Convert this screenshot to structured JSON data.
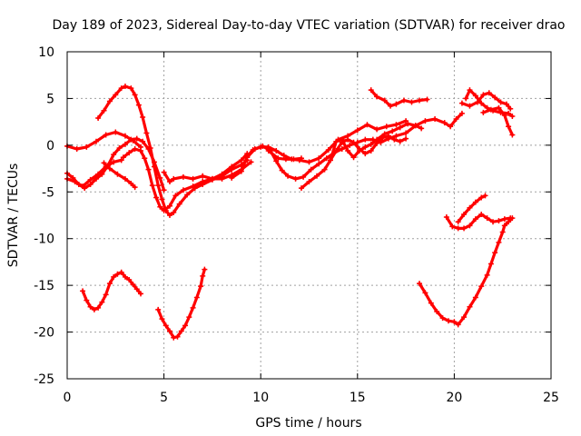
{
  "chart_data": {
    "type": "scatter",
    "title": "Day 189 of 2023, Sidereal Day-to-day VTEC variation (SDTVAR) for receiver drao",
    "xlabel": "GPS time / hours",
    "ylabel": "SDTVAR / TECUs",
    "xlim": [
      0,
      25
    ],
    "ylim": [
      -25,
      10
    ],
    "xticks": [
      0,
      5,
      10,
      15,
      20,
      25
    ],
    "yticks": [
      10,
      5,
      0,
      -5,
      -10,
      -15,
      -20,
      -25
    ],
    "xtick_labels": [
      "0",
      "5",
      "10",
      "15",
      "20",
      "25"
    ],
    "ytick_labels": [
      "10",
      "5",
      "0",
      "-5",
      "-10",
      "-15",
      "-20",
      "-25"
    ],
    "grid": true,
    "color": "#ff0000",
    "series": [
      {
        "points": [
          [
            0,
            -0.1
          ],
          [
            0.5,
            -0.4
          ],
          [
            1,
            -0.2
          ],
          [
            1.5,
            0.4
          ],
          [
            2,
            1.1
          ],
          [
            2.5,
            1.4
          ],
          [
            3,
            1.0
          ],
          [
            3.4,
            0.5
          ],
          [
            3.8,
            -0.2
          ]
        ]
      },
      {
        "points": [
          [
            0,
            -3
          ],
          [
            0.3,
            -3.5
          ],
          [
            0.6,
            -4.2
          ],
          [
            0.9,
            -4.6
          ],
          [
            1.2,
            -4.2
          ],
          [
            1.5,
            -3.6
          ],
          [
            1.8,
            -3.1
          ],
          [
            2.1,
            -2.2
          ],
          [
            2.4,
            -1.0
          ],
          [
            2.7,
            -0.3
          ],
          [
            3.0,
            0.1
          ],
          [
            3.3,
            0.6
          ],
          [
            3.6,
            0.7
          ],
          [
            3.9,
            0.4
          ],
          [
            4.2,
            -0.4
          ],
          [
            4.5,
            -1.8
          ],
          [
            4.8,
            -3.5
          ],
          [
            5.0,
            -4.8
          ]
        ]
      },
      {
        "points": [
          [
            0,
            -3.6
          ],
          [
            0.4,
            -3.9
          ],
          [
            0.8,
            -4.4
          ],
          [
            1.2,
            -3.7
          ],
          [
            1.6,
            -3.1
          ],
          [
            2.0,
            -2.3
          ],
          [
            2.4,
            -1.8
          ],
          [
            2.8,
            -1.6
          ]
        ]
      },
      {
        "points": [
          [
            1.6,
            2.9
          ],
          [
            1.9,
            3.7
          ],
          [
            2.2,
            4.7
          ],
          [
            2.5,
            5.4
          ],
          [
            2.8,
            6.1
          ],
          [
            3.0,
            6.3
          ],
          [
            3.3,
            6.1
          ],
          [
            3.5,
            5.4
          ],
          [
            3.7,
            4.3
          ],
          [
            3.9,
            3.0
          ],
          [
            4.1,
            1.3
          ],
          [
            4.3,
            -0.3
          ],
          [
            4.5,
            -2.3
          ],
          [
            4.7,
            -4.3
          ],
          [
            4.9,
            -5.8
          ],
          [
            5.1,
            -7.0
          ],
          [
            5.3,
            -7.5
          ],
          [
            5.5,
            -7.2
          ],
          [
            5.8,
            -6.3
          ],
          [
            6.2,
            -5.3
          ],
          [
            6.6,
            -4.6
          ],
          [
            7.0,
            -4.2
          ],
          [
            7.5,
            -3.7
          ],
          [
            8.0,
            -3.3
          ],
          [
            8.5,
            -2.6
          ],
          [
            9.0,
            -2.1
          ],
          [
            9.3,
            -1.6
          ]
        ]
      },
      {
        "points": [
          [
            1.9,
            -1.9
          ],
          [
            2.2,
            -2.5
          ],
          [
            2.6,
            -3.1
          ],
          [
            3.0,
            -3.6
          ],
          [
            3.3,
            -4.1
          ],
          [
            3.5,
            -4.5
          ]
        ]
      },
      {
        "points": [
          [
            2.9,
            -1.3
          ],
          [
            3.2,
            -0.8
          ],
          [
            3.5,
            -0.4
          ],
          [
            3.8,
            -0.6
          ],
          [
            4.0,
            -1.4
          ],
          [
            4.2,
            -2.6
          ],
          [
            4.4,
            -4.3
          ],
          [
            4.6,
            -5.6
          ],
          [
            4.8,
            -6.6
          ],
          [
            5.0,
            -7.0
          ],
          [
            5.3,
            -6.5
          ],
          [
            5.6,
            -5.4
          ],
          [
            6.0,
            -4.8
          ],
          [
            6.5,
            -4.4
          ],
          [
            7.0,
            -3.9
          ],
          [
            7.5,
            -3.6
          ],
          [
            8.0,
            -3.6
          ],
          [
            8.5,
            -3.2
          ],
          [
            9.0,
            -2.6
          ],
          [
            9.5,
            -1.8
          ]
        ]
      },
      {
        "points": [
          [
            5.0,
            -2.9
          ],
          [
            5.3,
            -3.9
          ],
          [
            5.5,
            -3.6
          ],
          [
            6.0,
            -3.4
          ],
          [
            6.5,
            -3.6
          ],
          [
            7.0,
            -3.3
          ],
          [
            7.5,
            -3.6
          ],
          [
            8.0,
            -3.1
          ],
          [
            8.5,
            -2.3
          ],
          [
            9.0,
            -1.6
          ],
          [
            9.3,
            -0.9
          ]
        ]
      },
      {
        "points": [
          [
            8.5,
            -3.5
          ],
          [
            9.0,
            -2.8
          ],
          [
            9.3,
            -1.2
          ],
          [
            9.6,
            -0.5
          ],
          [
            10.0,
            -0.2
          ],
          [
            10.4,
            -0.2
          ],
          [
            10.8,
            -0.6
          ],
          [
            11.2,
            -1.1
          ],
          [
            11.6,
            -1.5
          ],
          [
            12.0,
            -1.6
          ],
          [
            12.5,
            -1.8
          ],
          [
            13.0,
            -1.4
          ],
          [
            13.5,
            -0.5
          ],
          [
            14.0,
            0.6
          ],
          [
            14.5,
            1.0
          ],
          [
            15.0,
            1.6
          ],
          [
            15.5,
            2.2
          ],
          [
            16.0,
            1.7
          ],
          [
            16.5,
            2.0
          ],
          [
            17.0,
            2.2
          ],
          [
            17.5,
            2.6
          ]
        ]
      },
      {
        "points": [
          [
            9.3,
            -1.3
          ],
          [
            9.7,
            -0.4
          ],
          [
            10.1,
            -0.1
          ],
          [
            10.5,
            -0.6
          ],
          [
            10.8,
            -1.7
          ],
          [
            11.1,
            -2.7
          ],
          [
            11.4,
            -3.3
          ],
          [
            11.8,
            -3.6
          ],
          [
            12.2,
            -3.4
          ],
          [
            12.6,
            -2.6
          ],
          [
            13.0,
            -2.0
          ],
          [
            13.4,
            -1.4
          ],
          [
            13.8,
            -0.8
          ],
          [
            14.2,
            -0.4
          ],
          [
            14.6,
            0.0
          ],
          [
            15.0,
            0.3
          ],
          [
            15.4,
            0.6
          ],
          [
            15.8,
            0.6
          ],
          [
            16.2,
            0.3
          ],
          [
            16.6,
            0.7
          ],
          [
            17.0,
            1.0
          ],
          [
            17.5,
            1.3
          ],
          [
            18.0,
            2.1
          ],
          [
            18.5,
            2.6
          ],
          [
            19.0,
            2.8
          ],
          [
            19.5,
            2.4
          ],
          [
            19.8,
            2.0
          ],
          [
            20.1,
            2.8
          ],
          [
            20.4,
            3.4
          ]
        ]
      },
      {
        "points": [
          [
            10.4,
            -0.6
          ],
          [
            10.9,
            -1.4
          ],
          [
            11.3,
            -1.5
          ],
          [
            11.7,
            -1.5
          ],
          [
            12.1,
            -1.4
          ]
        ]
      },
      {
        "points": [
          [
            12.1,
            -4.6
          ],
          [
            12.5,
            -3.9
          ],
          [
            12.9,
            -3.3
          ],
          [
            13.3,
            -2.6
          ],
          [
            13.6,
            -1.6
          ],
          [
            13.9,
            -0.6
          ],
          [
            14.2,
            0.3
          ],
          [
            14.5,
            0.6
          ],
          [
            14.8,
            0.3
          ],
          [
            15.1,
            -0.4
          ],
          [
            15.4,
            -0.9
          ],
          [
            15.7,
            -0.6
          ],
          [
            16.0,
            0.2
          ],
          [
            16.3,
            0.8
          ],
          [
            16.6,
            1.0
          ],
          [
            16.9,
            0.6
          ],
          [
            17.2,
            0.4
          ],
          [
            17.5,
            0.7
          ]
        ]
      },
      {
        "points": [
          [
            13.6,
            -1.6
          ],
          [
            13.9,
            0.4
          ],
          [
            14.2,
            0.6
          ],
          [
            14.5,
            -0.6
          ],
          [
            14.8,
            -1.3
          ],
          [
            15.1,
            -0.6
          ],
          [
            15.4,
            -0.2
          ],
          [
            15.7,
            0.1
          ],
          [
            16.0,
            0.6
          ],
          [
            16.4,
            1.2
          ],
          [
            16.8,
            1.5
          ],
          [
            17.2,
            1.9
          ],
          [
            17.6,
            2.3
          ],
          [
            18.0,
            2.1
          ],
          [
            18.3,
            1.8
          ]
        ]
      },
      {
        "points": [
          [
            15.7,
            5.9
          ],
          [
            16.0,
            5.2
          ],
          [
            16.4,
            4.8
          ],
          [
            16.7,
            4.2
          ],
          [
            17.0,
            4.4
          ],
          [
            17.4,
            4.8
          ],
          [
            17.8,
            4.6
          ],
          [
            18.2,
            4.8
          ],
          [
            18.6,
            4.9
          ]
        ]
      },
      {
        "points": [
          [
            20.6,
            5.0
          ],
          [
            20.8,
            5.9
          ],
          [
            21.1,
            5.3
          ],
          [
            21.4,
            4.5
          ],
          [
            21.7,
            4.0
          ],
          [
            22.0,
            3.7
          ],
          [
            22.4,
            3.5
          ],
          [
            22.8,
            3.4
          ],
          [
            23.0,
            3.1
          ]
        ]
      },
      {
        "points": [
          [
            20.4,
            4.5
          ],
          [
            20.8,
            4.2
          ],
          [
            21.2,
            4.6
          ],
          [
            21.5,
            5.4
          ],
          [
            21.8,
            5.6
          ],
          [
            22.1,
            5.1
          ],
          [
            22.4,
            4.6
          ],
          [
            22.7,
            4.4
          ],
          [
            22.9,
            3.9
          ]
        ]
      },
      {
        "points": [
          [
            21.5,
            3.5
          ],
          [
            21.9,
            3.8
          ],
          [
            22.3,
            4.0
          ],
          [
            22.6,
            3.2
          ],
          [
            22.8,
            2.0
          ],
          [
            23.0,
            1.1
          ]
        ]
      },
      {
        "points": [
          [
            0.8,
            -15.6
          ],
          [
            1.0,
            -16.6
          ],
          [
            1.2,
            -17.3
          ],
          [
            1.4,
            -17.6
          ],
          [
            1.6,
            -17.4
          ],
          [
            1.8,
            -16.8
          ],
          [
            2.0,
            -16.0
          ],
          [
            2.2,
            -14.8
          ],
          [
            2.4,
            -14.1
          ],
          [
            2.6,
            -13.8
          ],
          [
            2.8,
            -13.6
          ],
          [
            3.0,
            -14.1
          ],
          [
            3.2,
            -14.4
          ],
          [
            3.4,
            -14.9
          ],
          [
            3.6,
            -15.4
          ],
          [
            3.8,
            -15.9
          ]
        ]
      },
      {
        "points": [
          [
            4.7,
            -17.6
          ],
          [
            4.9,
            -18.6
          ],
          [
            5.1,
            -19.3
          ],
          [
            5.3,
            -19.9
          ],
          [
            5.5,
            -20.6
          ],
          [
            5.7,
            -20.5
          ],
          [
            5.9,
            -19.9
          ],
          [
            6.1,
            -19.3
          ],
          [
            6.3,
            -18.4
          ],
          [
            6.5,
            -17.4
          ],
          [
            6.7,
            -16.3
          ],
          [
            6.9,
            -15.1
          ],
          [
            7.0,
            -14.0
          ],
          [
            7.1,
            -13.3
          ]
        ]
      },
      {
        "points": [
          [
            18.2,
            -14.8
          ],
          [
            18.5,
            -15.8
          ],
          [
            18.8,
            -16.9
          ],
          [
            19.1,
            -17.8
          ],
          [
            19.4,
            -18.5
          ],
          [
            19.7,
            -18.8
          ],
          [
            20.0,
            -18.9
          ],
          [
            20.2,
            -19.2
          ],
          [
            20.5,
            -18.4
          ],
          [
            20.8,
            -17.3
          ],
          [
            21.1,
            -16.3
          ],
          [
            21.4,
            -15.1
          ],
          [
            21.7,
            -13.9
          ],
          [
            21.9,
            -12.7
          ],
          [
            22.1,
            -11.5
          ],
          [
            22.3,
            -10.4
          ],
          [
            22.5,
            -9.3
          ],
          [
            22.6,
            -8.6
          ],
          [
            22.8,
            -8.2
          ],
          [
            23.0,
            -7.8
          ]
        ]
      },
      {
        "points": [
          [
            19.6,
            -7.7
          ],
          [
            19.9,
            -8.7
          ],
          [
            20.2,
            -8.9
          ],
          [
            20.5,
            -8.9
          ],
          [
            20.8,
            -8.6
          ],
          [
            21.1,
            -7.9
          ],
          [
            21.4,
            -7.4
          ],
          [
            21.7,
            -7.8
          ],
          [
            22.0,
            -8.2
          ],
          [
            22.3,
            -8.1
          ],
          [
            22.6,
            -7.9
          ],
          [
            22.9,
            -7.8
          ]
        ]
      },
      {
        "points": [
          [
            20.2,
            -8.2
          ],
          [
            20.5,
            -7.4
          ],
          [
            20.8,
            -6.7
          ],
          [
            21.1,
            -6.1
          ],
          [
            21.4,
            -5.6
          ],
          [
            21.6,
            -5.4
          ]
        ]
      }
    ]
  }
}
